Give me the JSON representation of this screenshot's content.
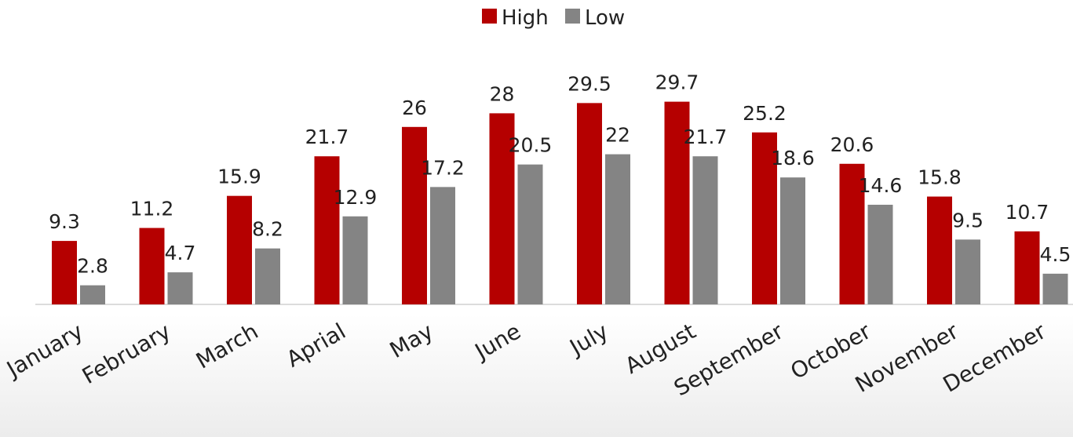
{
  "chart_data": {
    "type": "bar",
    "title": "",
    "xlabel": "",
    "ylabel": "",
    "categories": [
      "January",
      "February",
      "March",
      "Aprial",
      "May",
      "June",
      "July",
      "August",
      "September",
      "October",
      "November",
      "December"
    ],
    "series": [
      {
        "name": "High",
        "color": "#b50000",
        "values": [
          9.3,
          11.2,
          15.9,
          21.7,
          26,
          28,
          29.5,
          29.7,
          25.2,
          20.6,
          15.8,
          10.7
        ]
      },
      {
        "name": "Low",
        "color": "#848484",
        "values": [
          2.8,
          4.7,
          8.2,
          12.9,
          17.2,
          20.5,
          22,
          21.7,
          18.6,
          14.6,
          9.5,
          4.5
        ]
      }
    ],
    "ylim": [
      0,
      30
    ],
    "grid": false,
    "legend_position": "top-center",
    "data_labels": true
  }
}
